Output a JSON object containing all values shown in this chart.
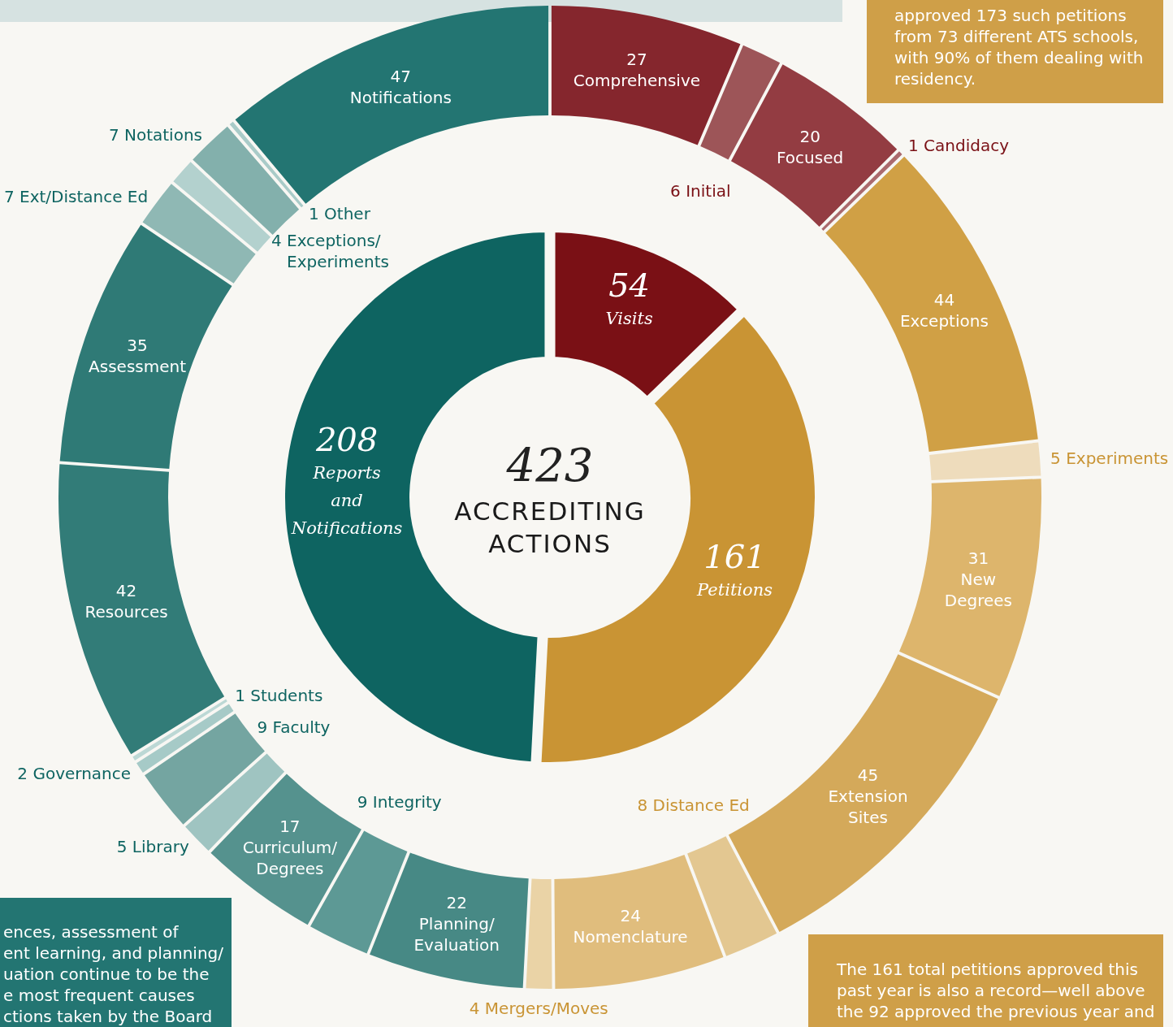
{
  "chart_data": [
    {
      "type": "donut",
      "title": "ACCREDITING ACTIONS",
      "annotations": [
        "423"
      ],
      "data_labels": true,
      "categories": [
        "Visits",
        "Petitions",
        "Reports and Notifications"
      ],
      "values": [
        54,
        161,
        208
      ],
      "colors": [
        "#7a1015",
        "#c99434",
        "#0e6461"
      ]
    },
    {
      "type": "donut",
      "data_labels": true,
      "categories": [
        "Comprehensive",
        "Initial",
        "Focused",
        "Candidacy",
        "Exceptions",
        "Experiments",
        "New Degrees",
        "Extension Sites",
        "Distance Ed",
        "Nomenclature",
        "Mergers/Moves",
        "Planning/Evaluation",
        "Integrity",
        "Curriculum/Degrees",
        "Library",
        "Faculty",
        "Governance",
        "Students",
        "Resources",
        "Assessment",
        "Ext/Distance Ed",
        "Exceptions/Experiments",
        "Notations",
        "Other",
        "Notifications"
      ],
      "values": [
        27,
        6,
        20,
        1,
        44,
        5,
        31,
        45,
        8,
        24,
        4,
        22,
        9,
        17,
        5,
        9,
        2,
        1,
        42,
        35,
        7,
        4,
        7,
        1,
        47
      ],
      "colors": [
        "#85262d",
        "#9d5558",
        "#933c42",
        "#ab6a6d",
        "#d0a045",
        "#eedcbc",
        "#ddb56c",
        "#d4a95a",
        "#e3c791",
        "#e0bd7d",
        "#ead3a6",
        "#478985",
        "#5d9995",
        "#55928e",
        "#9fc4c1",
        "#74a5a1",
        "#a6cac7",
        "#bcd8d5",
        "#327c78",
        "#2f7a76",
        "#8fb8b4",
        "#b3d1ce",
        "#83b0ac",
        "#a9cbc8",
        "#237572"
      ],
      "annotations": [
        "approved 173 such petitions\nfrom 73 different ATS schools,\nwith 90% of them dealing with\nresidency.",
        "ences, assessment of\nent learning, and planning/\nuation continue to be the\ne most frequent causes\nctions taken by the Board",
        "The 161 total petitions approved this\npast year is also a record—well above\nthe 92 approved the previous year and"
      ]
    }
  ]
}
